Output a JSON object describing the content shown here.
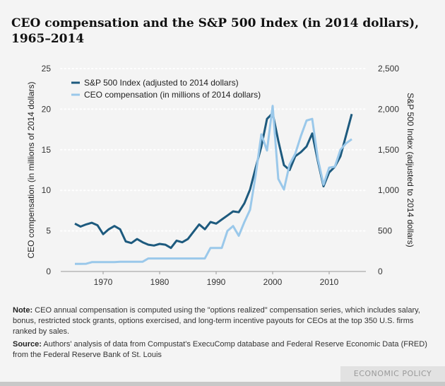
{
  "title": "CEO compensation and the S&P 500 Index (in 2014 dollars), 1965–2014",
  "note_label": "Note:",
  "note_text": " CEO annual compensation is computed using the \"options realized\" compensation series, which includes salary, bonus, restricted stock grants, options exercised, and long-term incentive payouts for CEOs at the top 350 U.S. firms ranked by sales.",
  "source_label": "Source:",
  "source_text": " Authors' analysis of data from Compustat's ExecuComp database and Federal Reserve Economic Data (FRED) from the Federal Reserve Bank of St. Louis",
  "brand": "ECONOMIC POLICY INSTITUTE",
  "chart_data": {
    "type": "line",
    "title": "CEO compensation and the S&P 500 Index (in 2014 dollars), 1965–2014",
    "xlabel": "",
    "ylabel": "CEO compensation (in millions of 2014 dollars)",
    "y2label": "S&P 500 Index (adjusted to 2014 dollars)",
    "xlim": [
      1965,
      2014
    ],
    "ylim": [
      0,
      25
    ],
    "y2lim": [
      0,
      2500
    ],
    "x_ticks": [
      "1970",
      "1980",
      "1990",
      "2000",
      "2010"
    ],
    "y_ticks": [
      "0",
      "5",
      "10",
      "15",
      "20",
      "25"
    ],
    "y2_ticks": [
      "0",
      "500",
      "1,000",
      "1,500",
      "2,000",
      "2,500"
    ],
    "grid": "horizontal dotted",
    "legend": "top-left",
    "x": [
      1965,
      1966,
      1967,
      1968,
      1969,
      1970,
      1971,
      1972,
      1973,
      1974,
      1975,
      1976,
      1977,
      1978,
      1979,
      1980,
      1981,
      1982,
      1983,
      1984,
      1985,
      1986,
      1987,
      1988,
      1989,
      1990,
      1991,
      1992,
      1993,
      1994,
      1995,
      1996,
      1997,
      1998,
      1999,
      2000,
      2001,
      2002,
      2003,
      2004,
      2005,
      2006,
      2007,
      2008,
      2009,
      2010,
      2011,
      2012,
      2013,
      2014
    ],
    "series": [
      {
        "name": "S&P 500 Index (adjusted to 2014 dollars)",
        "axis": "right",
        "color": "#1d5a7e",
        "values": [
          590,
          553,
          580,
          600,
          570,
          460,
          520,
          560,
          520,
          370,
          350,
          400,
          360,
          330,
          320,
          340,
          330,
          290,
          380,
          360,
          400,
          490,
          580,
          520,
          610,
          590,
          640,
          690,
          740,
          730,
          840,
          1010,
          1280,
          1540,
          1880,
          1950,
          1610,
          1310,
          1250,
          1420,
          1470,
          1540,
          1700,
          1360,
          1050,
          1220,
          1290,
          1420,
          1680,
          1940
        ]
      },
      {
        "name": "CEO compensation (in millions of 2014 dollars)",
        "axis": "left",
        "color": "#9ac8ea",
        "values": [
          0.93,
          0.93,
          0.95,
          1.15,
          1.15,
          1.15,
          1.15,
          1.15,
          1.2,
          1.2,
          1.2,
          1.2,
          1.2,
          1.6,
          1.6,
          1.6,
          1.6,
          1.6,
          1.6,
          1.6,
          1.6,
          1.6,
          1.6,
          1.6,
          2.9,
          2.9,
          2.9,
          5.0,
          5.6,
          4.4,
          6.1,
          7.6,
          11.9,
          16.9,
          14.9,
          20.4,
          11.4,
          10.1,
          13.2,
          14.5,
          16.7,
          18.6,
          18.8,
          13.9,
          10.7,
          12.8,
          12.9,
          15.0,
          15.8,
          16.3
        ]
      }
    ]
  }
}
